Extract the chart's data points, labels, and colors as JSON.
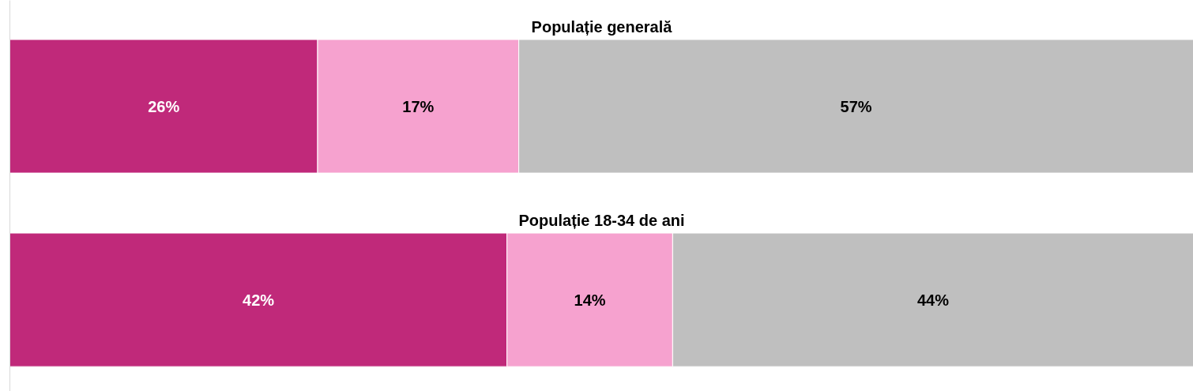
{
  "chart_data": {
    "type": "bar",
    "orientation": "horizontal",
    "stacked": true,
    "categories": [
      "Populație generală",
      "Populație 18-34 de ani"
    ],
    "xlim": [
      0,
      100
    ],
    "series": [
      {
        "color": "#c0297a",
        "values": [
          26,
          42
        ],
        "value_labels": [
          "26%",
          "42%"
        ]
      },
      {
        "color": "#f6a2cf",
        "values": [
          17,
          14
        ],
        "value_labels": [
          "17%",
          "14%"
        ]
      },
      {
        "color": "#bfbfbf",
        "values": [
          57,
          44
        ],
        "value_labels": [
          "57%",
          "44%"
        ]
      }
    ]
  }
}
